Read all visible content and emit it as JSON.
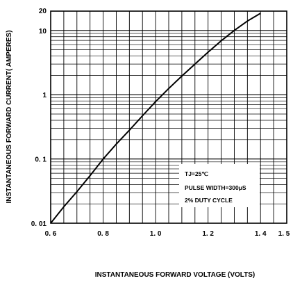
{
  "chart_data": {
    "type": "line",
    "title": "",
    "xlabel": "INSTANTANEOUS FORWARD VOLTAGE (VOLTS)",
    "ylabel": "INSTANTANEOUS FORWARD CURRENT( AMPERES)",
    "xlim": [
      0.6,
      1.5
    ],
    "ylim": [
      0.01,
      20
    ],
    "yscale": "log",
    "grid": true,
    "x_ticks": [
      "0. 6",
      "0. 8",
      "1. 0",
      "1. 2",
      "1. 4",
      "1. 5"
    ],
    "x_tick_values": [
      0.6,
      0.8,
      1.0,
      1.2,
      1.4,
      1.5
    ],
    "y_ticks": [
      "0. 01",
      "0. 1",
      "1",
      "10",
      "20"
    ],
    "y_tick_values": [
      0.01,
      0.1,
      1,
      10,
      20
    ],
    "series": [
      {
        "x": [
          0.6,
          0.65,
          0.7,
          0.75,
          0.8,
          0.85,
          0.9,
          0.95,
          1.0,
          1.05,
          1.1,
          1.15,
          1.2,
          1.25,
          1.3,
          1.35,
          1.4
        ],
        "values": [
          0.01,
          0.018,
          0.031,
          0.055,
          0.1,
          0.17,
          0.28,
          0.47,
          0.78,
          1.25,
          1.95,
          3.0,
          4.6,
          6.9,
          10.0,
          14.0,
          18.5
        ]
      }
    ],
    "annotations": [
      "TJ=25℃",
      "PULSE WIDTH=300μS",
      "2% DUTY CYCLE"
    ]
  }
}
